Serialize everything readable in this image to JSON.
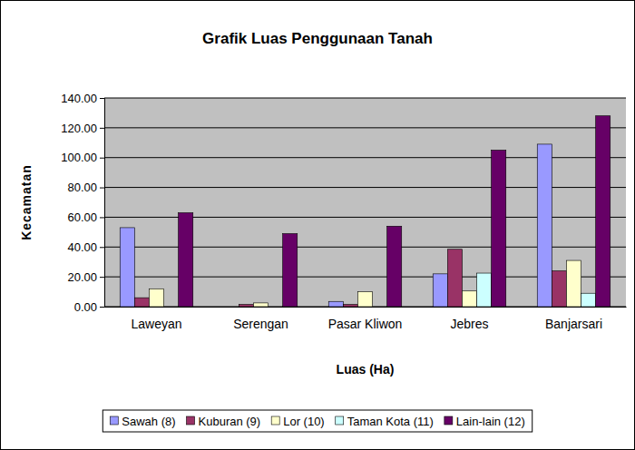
{
  "chart_data": {
    "type": "bar",
    "title": "Grafik Luas Penggunaan Tanah",
    "x_label": "Luas (Ha)",
    "y_label": "Kecamatan",
    "categories": [
      "Laweyan",
      "Serengan",
      "Pasar Kliwon",
      "Jebres",
      "Banjarsari"
    ],
    "series": [
      {
        "name": "Sawah (8)",
        "color": "#9999ff",
        "values": [
          53,
          0,
          3.5,
          22,
          109
        ]
      },
      {
        "name": "Kuburan (9)",
        "color": "#993366",
        "values": [
          6,
          1.5,
          1.5,
          38.5,
          24
        ]
      },
      {
        "name": "Lor (10)",
        "color": "#ffffcc",
        "values": [
          12,
          2.5,
          10,
          10.5,
          31
        ]
      },
      {
        "name": "Taman Kota (11)",
        "color": "#ccffff",
        "values": [
          0,
          0,
          0,
          22.5,
          9
        ]
      },
      {
        "name": "Lain-lain (12)",
        "color": "#660066",
        "values": [
          63,
          49,
          54,
          105,
          128
        ]
      }
    ],
    "ylim": [
      0,
      140
    ],
    "yticks": [
      {
        "value": 0,
        "label": "0.00"
      },
      {
        "value": 20,
        "label": "20.00"
      },
      {
        "value": 40,
        "label": "40.00"
      },
      {
        "value": 60,
        "label": "60.00"
      },
      {
        "value": 80,
        "label": "80.00"
      },
      {
        "value": 100,
        "label": "100.00"
      },
      {
        "value": 120,
        "label": "120.00"
      },
      {
        "value": 140,
        "label": "140.00"
      }
    ],
    "grid": true,
    "legend": "bottom"
  }
}
